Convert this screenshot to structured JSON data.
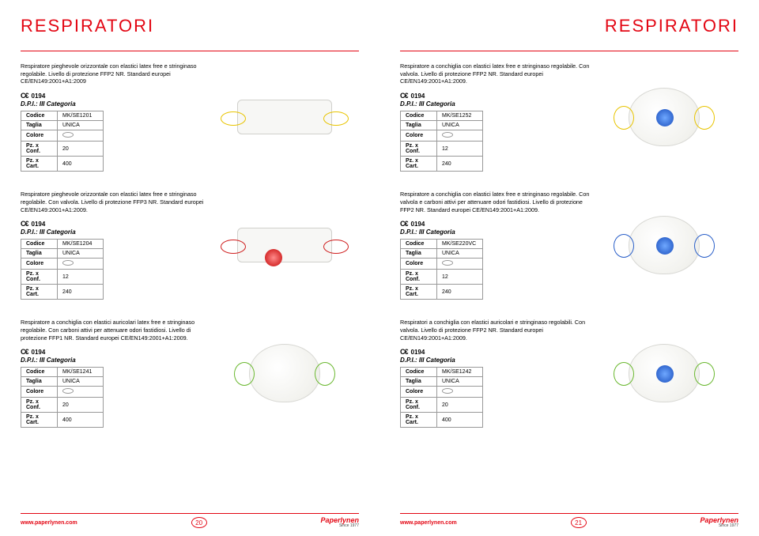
{
  "title": "RESPIRATORI",
  "cert_num": "0194",
  "category": "D.P.I.: III Categoria",
  "labels": {
    "code": "Codice",
    "size": "Taglia",
    "color": "Colore",
    "conf": "Pz. x Conf.",
    "cart": "Pz. x Cart."
  },
  "size_val": "UNICA",
  "url": "www.paperlynen.com",
  "brand": "Paperlynen",
  "since": "Since 1977",
  "left": {
    "pagenum": "20",
    "products": [
      {
        "desc": "Respiratore pieghevole orizzontale con elastici latex free e stringinaso regolabile. Livello di protezione FFP2 NR. Standard europei CE/EN149:2001+A1:2009",
        "code": "MK/SE1201",
        "conf": "20",
        "cart": "400",
        "shape": "flat",
        "strap": "yellow",
        "valve": null
      },
      {
        "desc": "Respiratore pieghevole orizzontale con elastici latex free e stringinaso regolabile. Con valvola. Livello di protezione FFP3 NR. Standard europei CE/EN149:2001+A1:2009.",
        "code": "MK/SE1204",
        "conf": "12",
        "cart": "240",
        "shape": "flat",
        "strap": "red",
        "valve": "red"
      },
      {
        "desc": "Respiratore a conchiglia con elastici auricolari latex free e stringinaso regolabile. Con carboni attivi per attenuare odori fastidiosi. Livello di protezione FFP1 NR. Standard europei CE/EN149:2001+A1:2009.",
        "code": "MK/SE1241",
        "conf": "20",
        "cart": "400",
        "shape": "cup",
        "strap": "green",
        "valve": null
      }
    ]
  },
  "right": {
    "pagenum": "21",
    "products": [
      {
        "desc": "Respiratore a conchiglia con elastici latex free e stringinaso regolabile. Con valvola. Livello di protezione FFP2 NR. Standard europei CE/EN149:2001+A1:2009.",
        "code": "MK/SE1252",
        "conf": "12",
        "cart": "240",
        "shape": "cup",
        "strap": "yellow",
        "valve": "blue"
      },
      {
        "desc": "Respiratore a conchiglia con elastici latex free e stringinaso regolabile. Con valvola e carboni attivi per attenuare odori fastidiosi. Livello di protezione FFP2 NR. Standard europei CE/EN149:2001+A1:2009.",
        "code": "MK/SE220VC",
        "conf": "12",
        "cart": "240",
        "shape": "cup",
        "strap": "blue",
        "valve": "blue"
      },
      {
        "desc": "Respiratori a conchiglia  con elastici auricolari e stringinaso regolabili. Con valvola. Livello di protezione FFP2 NR. Standard europei CE/EN149:2001+A1:2009.",
        "code": "MK/SE1242",
        "conf": "20",
        "cart": "400",
        "shape": "cup",
        "strap": "green",
        "valve": "blue"
      }
    ]
  }
}
